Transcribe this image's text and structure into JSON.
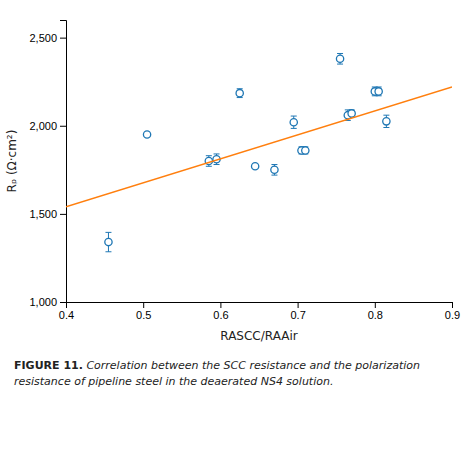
{
  "chart_data": {
    "type": "scatter",
    "xlabel": "RASCC/RAAir",
    "ylabel": "Rₚ (Ω·cm²)",
    "annotations": [
      "FIGURE 11.",
      "Correlation between the SCC resistance and the polarization resistance of pipeline steel in the deaerated NS4 solution."
    ],
    "series": [
      {
        "type": "scatter",
        "marker": "circle",
        "x": [
          0.455,
          0.505,
          0.585,
          0.595,
          0.625,
          0.645,
          0.67,
          0.695,
          0.705,
          0.71,
          0.755,
          0.765,
          0.77,
          0.8,
          0.805,
          0.815
        ],
        "values": [
          1340,
          1950,
          1800,
          1810,
          2185,
          1770,
          1750,
          2020,
          1860,
          1860,
          2380,
          2060,
          2070,
          2195,
          2195,
          2025
        ],
        "errors": [
          55,
          0,
          30,
          30,
          25,
          0,
          30,
          35,
          20,
          20,
          30,
          30,
          20,
          25,
          25,
          35
        ]
      },
      {
        "type": "line",
        "line_style": "solid",
        "x": [
          0.4,
          0.9
        ],
        "values": [
          1540,
          2220
        ]
      }
    ],
    "xlim": [
      0.4,
      0.9
    ],
    "ylim": [
      1000,
      2600
    ],
    "xticks": [
      0.4,
      0.5,
      0.6,
      0.7,
      0.8,
      0.9
    ],
    "yticks": [
      {
        "value": 1000,
        "label": "1,000"
      },
      {
        "value": 1500,
        "label": "1,500"
      },
      {
        "value": 2000,
        "label": "2,000"
      },
      {
        "value": 2500,
        "label": "2,500"
      }
    ],
    "grid": false
  }
}
